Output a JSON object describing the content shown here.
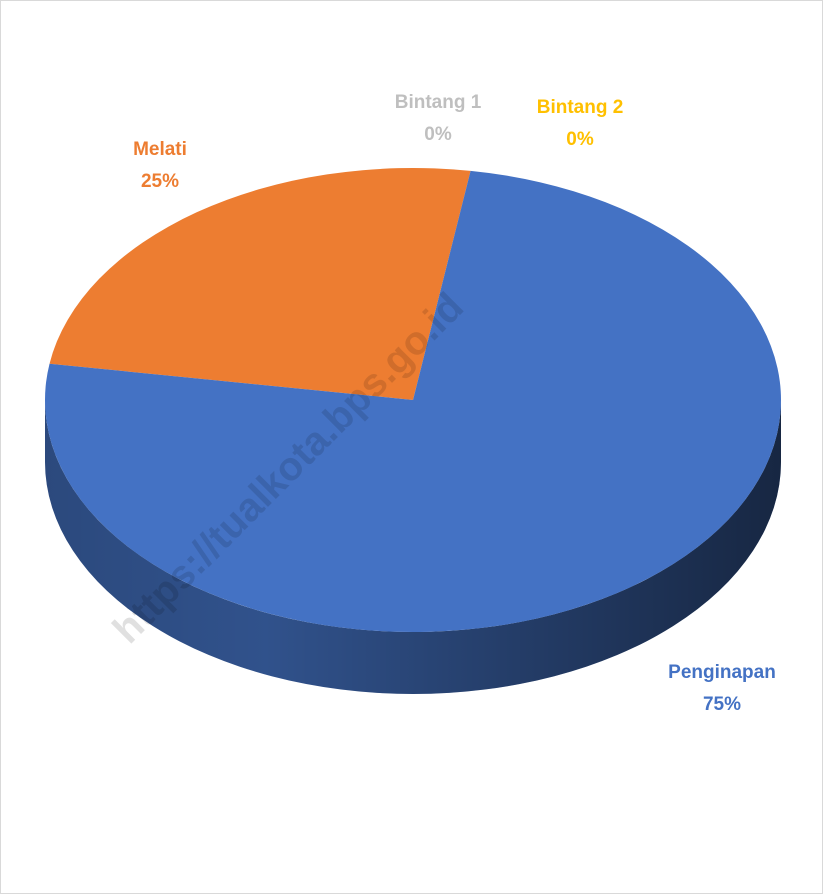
{
  "chart_data": {
    "type": "pie",
    "categories": [
      "Melati",
      "Bintang 1",
      "Bintang 2",
      "Penginapan"
    ],
    "values": [
      25,
      0,
      0,
      75
    ],
    "value_labels": [
      "25%",
      "0%",
      "0%",
      "75%"
    ],
    "colors": [
      "#ed7d31",
      "#a5a5a5",
      "#ffc000",
      "#4472c4"
    ],
    "watermark": "https://tualkota.bps.go.id"
  }
}
